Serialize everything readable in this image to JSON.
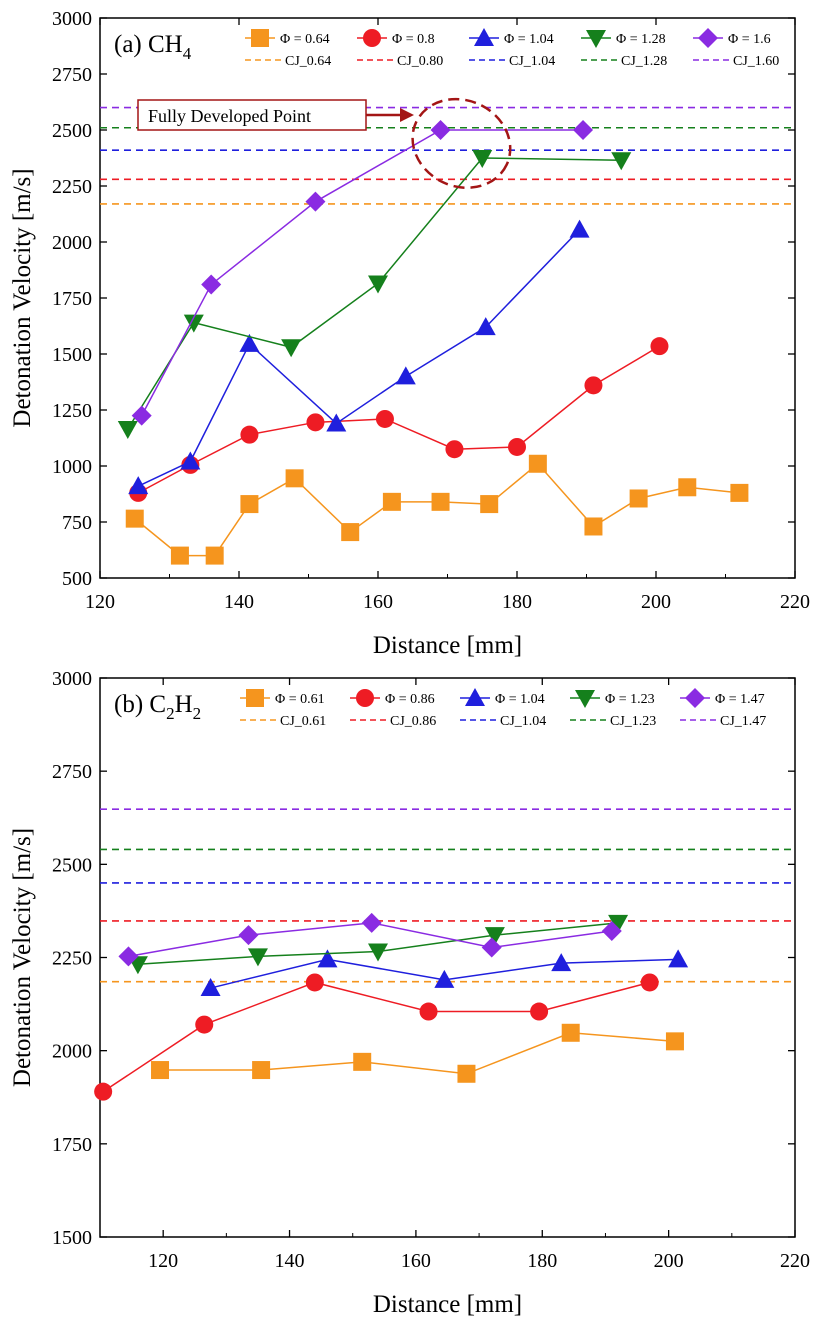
{
  "chart_data": [
    {
      "type": "line",
      "panel_label": "(a) CH",
      "panel_label_sub": "4",
      "xlabel": "Distance [mm]",
      "ylabel": "Detonation Velocity [m/s]",
      "xlim": [
        120,
        220
      ],
      "ylim": [
        500,
        3000
      ],
      "xticks": [
        120,
        140,
        160,
        180,
        200,
        220
      ],
      "yticks": [
        500,
        750,
        1000,
        1250,
        1500,
        1750,
        2000,
        2250,
        2500,
        2750,
        3000
      ],
      "legend_position": "top",
      "annotation": {
        "text": "Fully Developed Point",
        "x": 172,
        "y": 2440
      },
      "series": [
        {
          "name": "Φ = 0.64",
          "color": "#f5951e",
          "marker": "square",
          "x": [
            125,
            131.5,
            136.5,
            141.5,
            148,
            156,
            162,
            169,
            176,
            183,
            191,
            197.5,
            204.5,
            212
          ],
          "y": [
            765,
            600,
            600,
            830,
            945,
            705,
            840,
            840,
            830,
            1010,
            730,
            855,
            905,
            880
          ]
        },
        {
          "name": "Φ = 0.8",
          "color": "#ee1c24",
          "marker": "circle",
          "x": [
            125.5,
            133,
            141.5,
            151,
            161,
            171,
            180,
            191,
            200.5
          ],
          "y": [
            880,
            1005,
            1140,
            1195,
            1210,
            1075,
            1085,
            1360,
            1535
          ]
        },
        {
          "name": "Φ = 1.04",
          "color": "#1f1fdd",
          "marker": "triangle-up",
          "x": [
            125.5,
            133,
            141.5,
            154,
            164,
            175.5,
            189
          ],
          "y": [
            910,
            1020,
            1545,
            1190,
            1400,
            1620,
            2055
          ]
        },
        {
          "name": "Φ = 1.28",
          "color": "#15801c",
          "marker": "triangle-down",
          "x": [
            124,
            133.5,
            147.5,
            160,
            175,
            195
          ],
          "y": [
            1165,
            1640,
            1530,
            1815,
            2375,
            2365
          ]
        },
        {
          "name": "Φ = 1.6",
          "color": "#8a2be2",
          "marker": "diamond",
          "x": [
            126,
            136,
            151,
            169,
            189.5
          ],
          "y": [
            1225,
            1810,
            2180,
            2500,
            2500
          ]
        }
      ],
      "reference_lines": [
        {
          "name": "CJ_0.64",
          "color": "#f5951e",
          "y": 2170
        },
        {
          "name": "CJ_0.80",
          "color": "#ee1c24",
          "y": 2280
        },
        {
          "name": "CJ_1.04",
          "color": "#1f1fdd",
          "y": 2410
        },
        {
          "name": "CJ_1.28",
          "color": "#15801c",
          "y": 2510
        },
        {
          "name": "CJ_1.60",
          "color": "#8a2be2",
          "y": 2600
        }
      ]
    },
    {
      "type": "line",
      "panel_label": "(b) C",
      "panel_label_sub": "2",
      "panel_label_mid": "H",
      "panel_label_sub2": "2",
      "xlabel": "Distance [mm]",
      "ylabel": "Detonation Velocity [m/s]",
      "xlim": [
        110,
        220
      ],
      "ylim": [
        1500,
        3000
      ],
      "xticks": [
        120,
        140,
        160,
        180,
        200,
        220
      ],
      "yticks": [
        1500,
        1750,
        2000,
        2250,
        2500,
        2750,
        3000
      ],
      "legend_position": "top",
      "series": [
        {
          "name": "Φ = 0.61",
          "color": "#f5951e",
          "marker": "square",
          "x": [
            119.5,
            135.5,
            151.5,
            168,
            184.5,
            201
          ],
          "y": [
            1948,
            1948,
            1970,
            1938,
            2048,
            2025
          ]
        },
        {
          "name": "Φ = 0.86",
          "color": "#ee1c24",
          "marker": "circle",
          "x": [
            110.5,
            126.5,
            144,
            162,
            179.5,
            197
          ],
          "y": [
            1890,
            2070,
            2183,
            2105,
            2105,
            2183
          ]
        },
        {
          "name": "Φ = 1.04",
          "color": "#1f1fdd",
          "marker": "triangle-up",
          "x": [
            127.5,
            146,
            164.5,
            183,
            201.5
          ],
          "y": [
            2168,
            2245,
            2190,
            2235,
            2245
          ]
        },
        {
          "name": "Φ = 1.23",
          "color": "#15801c",
          "marker": "triangle-down",
          "x": [
            116,
            135,
            154,
            172.5,
            192
          ],
          "y": [
            2232,
            2253,
            2266,
            2310,
            2343
          ]
        },
        {
          "name": "Φ = 1.47",
          "color": "#8a2be2",
          "marker": "diamond",
          "x": [
            114.5,
            133.5,
            153,
            172,
            191
          ],
          "y": [
            2253,
            2310,
            2343,
            2277,
            2321
          ]
        }
      ],
      "reference_lines": [
        {
          "name": "CJ_0.61",
          "color": "#f5951e",
          "y": 2185
        },
        {
          "name": "CJ_0.86",
          "color": "#ee1c24",
          "y": 2348
        },
        {
          "name": "CJ_1.04",
          "color": "#1f1fdd",
          "y": 2450
        },
        {
          "name": "CJ_1.23",
          "color": "#15801c",
          "y": 2540
        },
        {
          "name": "CJ_1.47",
          "color": "#8a2be2",
          "y": 2648
        }
      ]
    }
  ]
}
